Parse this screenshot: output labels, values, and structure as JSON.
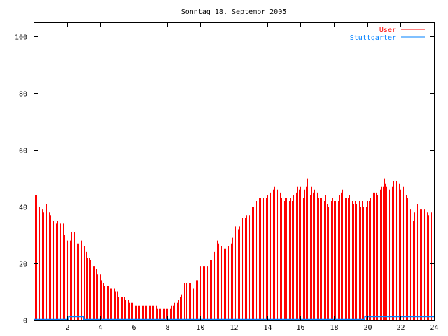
{
  "chart_data": {
    "type": "bar",
    "title": "Sonntag 18. Septembr 2005",
    "xlabel": "",
    "ylabel": "",
    "xlim": [
      0,
      24
    ],
    "ylim": [
      0,
      105
    ],
    "x_ticks": [
      2,
      4,
      6,
      8,
      10,
      12,
      14,
      16,
      18,
      20,
      22,
      24
    ],
    "y_ticks": [
      0,
      20,
      40,
      60,
      80,
      100
    ],
    "grid": false,
    "legend_position": "top-right",
    "interval_minutes": 5,
    "series": [
      {
        "name": "User",
        "color": "#ff0000",
        "style": "impulses",
        "values": [
          43,
          44,
          44,
          44,
          40,
          40,
          39,
          38,
          38,
          41,
          40,
          38,
          37,
          36,
          35,
          36,
          34,
          35,
          35,
          34,
          34,
          34,
          30,
          29,
          28,
          28,
          28,
          31,
          32,
          31,
          28,
          27,
          27,
          28,
          28,
          27,
          26,
          24,
          24,
          22,
          22,
          21,
          19,
          19,
          19,
          18,
          16,
          16,
          16,
          14,
          13,
          12,
          12,
          12,
          12,
          11,
          11,
          11,
          11,
          10,
          10,
          8,
          8,
          8,
          8,
          8,
          7,
          6,
          7,
          6,
          6,
          6,
          5,
          5,
          5,
          5,
          5,
          5,
          5,
          5,
          5,
          5,
          5,
          5,
          5,
          5,
          5,
          5,
          5,
          4,
          4,
          4,
          4,
          4,
          4,
          4,
          4,
          4,
          4,
          5,
          5,
          6,
          5,
          6,
          7,
          8,
          9,
          13,
          13,
          11,
          13,
          13,
          13,
          13,
          12,
          11,
          12,
          14,
          14,
          14,
          19,
          18,
          19,
          19,
          19,
          19,
          21,
          21,
          21,
          22,
          24,
          28,
          28,
          27,
          27,
          26,
          25,
          25,
          25,
          25,
          26,
          26,
          27,
          29,
          32,
          33,
          33,
          32,
          33,
          35,
          36,
          37,
          36,
          37,
          37,
          37,
          40,
          40,
          40,
          42,
          42,
          43,
          43,
          43,
          44,
          43,
          43,
          43,
          44,
          46,
          45,
          45,
          46,
          47,
          47,
          46,
          47,
          45,
          43,
          42,
          42,
          43,
          43,
          43,
          42,
          43,
          42,
          44,
          45,
          45,
          47,
          46,
          47,
          44,
          43,
          46,
          47,
          50,
          45,
          44,
          47,
          45,
          46,
          44,
          45,
          43,
          43,
          43,
          41,
          42,
          44,
          41,
          40,
          44,
          42,
          43,
          42,
          42,
          42,
          42,
          44,
          45,
          46,
          45,
          43,
          43,
          43,
          44,
          42,
          42,
          41,
          42,
          41,
          43,
          42,
          40,
          42,
          40,
          43,
          40,
          42,
          42,
          43,
          45,
          45,
          45,
          45,
          44,
          47,
          46,
          47,
          47,
          50,
          48,
          47,
          47,
          46,
          47,
          47,
          49,
          50,
          49,
          49,
          48,
          46,
          46,
          47,
          43,
          44,
          43,
          41,
          39,
          37,
          35,
          38,
          40,
          41,
          39,
          39,
          39,
          39,
          39,
          37,
          38,
          37,
          36,
          38,
          37
        ]
      },
      {
        "name": "Stuttgarter",
        "color": "#0080ff",
        "style": "steps",
        "points": [
          [
            0,
            0
          ],
          [
            2.1,
            0
          ],
          [
            2.1,
            1
          ],
          [
            3.0,
            1
          ],
          [
            3.0,
            0
          ],
          [
            19.85,
            0
          ],
          [
            19.85,
            1
          ],
          [
            24,
            1
          ]
        ]
      }
    ]
  }
}
